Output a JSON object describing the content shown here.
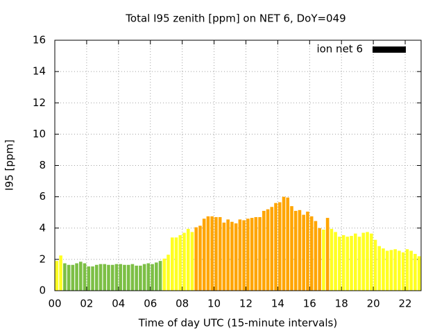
{
  "chart_data": {
    "type": "bar",
    "title": "Total I95 zenith [ppm] on NET 6, DoY=049",
    "x_label": "Time of day UTC (15-minute intervals)",
    "y_label": "I95 [ppm]",
    "x": [
      0,
      0.25,
      0.5,
      0.75,
      1,
      1.25,
      1.5,
      1.75,
      2,
      2.25,
      2.5,
      2.75,
      3,
      3.25,
      3.5,
      3.75,
      4,
      4.25,
      4.5,
      4.75,
      5,
      5.25,
      5.5,
      5.75,
      6,
      6.25,
      6.5,
      6.75,
      7,
      7.25,
      7.5,
      7.75,
      8,
      8.25,
      8.5,
      8.75,
      9,
      9.25,
      9.5,
      9.75,
      10,
      10.25,
      10.5,
      10.75,
      11,
      11.25,
      11.5,
      11.75,
      12,
      12.25,
      12.5,
      12.75,
      13,
      13.25,
      13.5,
      13.75,
      14,
      14.25,
      14.5,
      14.75,
      15,
      15.25,
      15.5,
      15.75,
      16,
      16.25,
      16.5,
      16.75,
      17,
      17.25,
      17.5,
      17.75,
      18,
      18.25,
      18.5,
      18.75,
      19,
      19.25,
      19.5,
      19.75,
      20,
      20.25,
      20.5,
      20.75,
      21,
      21.25,
      21.5,
      21.75,
      22,
      22.25,
      22.5,
      22.75
    ],
    "series": [
      {
        "name": "ion net 6",
        "color": "#000000",
        "values": [
          1.9,
          2.25,
          1.75,
          1.65,
          1.65,
          1.75,
          1.85,
          1.75,
          1.55,
          1.55,
          1.65,
          1.7,
          1.7,
          1.65,
          1.65,
          1.7,
          1.7,
          1.65,
          1.65,
          1.7,
          1.6,
          1.6,
          1.7,
          1.75,
          1.7,
          1.8,
          1.9,
          2.05,
          2.3,
          3.4,
          3.4,
          3.55,
          3.7,
          3.95,
          3.75,
          4.05,
          4.15,
          4.6,
          4.75,
          4.75,
          4.7,
          4.7,
          4.35,
          4.55,
          4.4,
          4.3,
          4.55,
          4.5,
          4.6,
          4.65,
          4.7,
          4.7,
          5.1,
          5.2,
          5.35,
          5.6,
          5.65,
          6.0,
          5.95,
          5.4,
          5.1,
          5.15,
          4.85,
          5.05,
          4.75,
          4.45,
          4.0,
          3.9,
          4.65,
          3.95,
          3.75,
          3.45,
          3.55,
          3.45,
          3.5,
          3.65,
          3.45,
          3.7,
          3.75,
          3.65,
          3.25,
          2.85,
          2.7,
          2.55,
          2.6,
          2.65,
          2.55,
          2.45,
          2.65,
          2.55,
          2.35,
          2.2
        ],
        "bar_colors": [
          "#ffff22",
          "#ffff22",
          "#7cbf45",
          "#7cbf45",
          "#7cbf45",
          "#7cbf45",
          "#7cbf45",
          "#7cbf45",
          "#7cbf45",
          "#7cbf45",
          "#7cbf45",
          "#7cbf45",
          "#7cbf45",
          "#7cbf45",
          "#7cbf45",
          "#7cbf45",
          "#7cbf45",
          "#7cbf45",
          "#7cbf45",
          "#7cbf45",
          "#7cbf45",
          "#7cbf45",
          "#7cbf45",
          "#7cbf45",
          "#7cbf45",
          "#7cbf45",
          "#7cbf45",
          "#ffff22",
          "#ffff22",
          "#ffff22",
          "#ffff22",
          "#ffff22",
          "#ffff22",
          "#ffff22",
          "#ffff22",
          "#ffa500",
          "#ffa500",
          "#ffa500",
          "#ffa500",
          "#ffa500",
          "#ffa500",
          "#ffa500",
          "#ffa500",
          "#ffa500",
          "#ffa500",
          "#ffa500",
          "#ffa500",
          "#ffa500",
          "#ffa500",
          "#ffa500",
          "#ffa500",
          "#ffa500",
          "#ffa500",
          "#ffa500",
          "#ffa500",
          "#ffa500",
          "#ffa500",
          "#ffa500",
          "#ffa500",
          "#ffa500",
          "#ffa500",
          "#ffa500",
          "#ffa500",
          "#ffa500",
          "#ffa500",
          "#ffa500",
          "#ffa500",
          "#ffff22",
          "#ffa500",
          "#ffff22",
          "#ffff22",
          "#ffff22",
          "#ffff22",
          "#ffff22",
          "#ffff22",
          "#ffff22",
          "#ffff22",
          "#ffff22",
          "#ffff22",
          "#ffff22",
          "#ffff22",
          "#ffff22",
          "#ffff22",
          "#ffff22",
          "#ffff22",
          "#ffff22",
          "#ffff22",
          "#ffff22",
          "#ffff22",
          "#ffff22",
          "#ffff22",
          "#ffff22"
        ]
      }
    ],
    "bar_span": 0.25,
    "xlim": [
      0,
      23
    ],
    "ylim": [
      0,
      16
    ],
    "xticks": [
      {
        "value": 0,
        "label": "00"
      },
      {
        "value": 2,
        "label": "02"
      },
      {
        "value": 4,
        "label": "04"
      },
      {
        "value": 6,
        "label": "06"
      },
      {
        "value": 8,
        "label": "08"
      },
      10,
      12,
      14,
      16,
      18,
      20,
      22
    ],
    "yticks": [
      0,
      2,
      4,
      6,
      8,
      10,
      12,
      14,
      16
    ],
    "grid": true,
    "legend": "top-right"
  }
}
